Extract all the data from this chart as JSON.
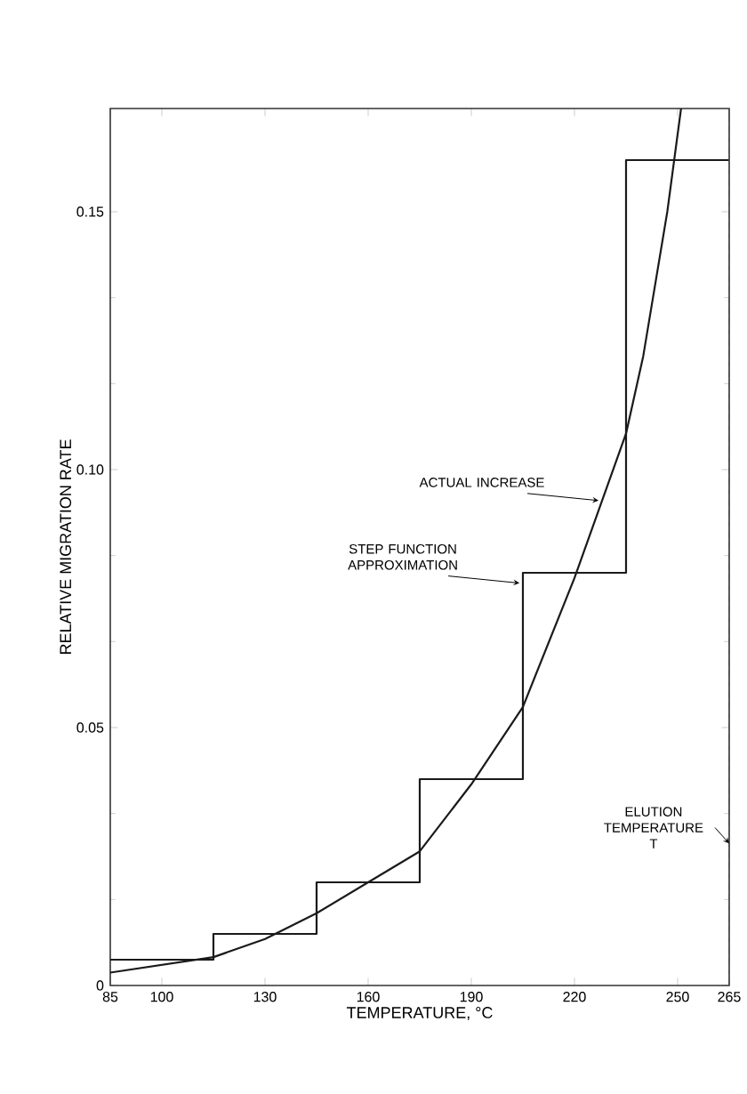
{
  "chart_data": {
    "type": "line",
    "xlabel": "TEMPERATURE,  °C",
    "ylabel": "RELATIVE MIGRATION RATE",
    "xlim": [
      85,
      265
    ],
    "ylim": [
      0,
      0.17
    ],
    "xticks": [
      85,
      100,
      130,
      160,
      190,
      220,
      250,
      265
    ],
    "yticks": [
      0,
      0.05,
      {
        "value": 0.1,
        "label": "0.10"
      },
      0.15
    ],
    "series": [
      {
        "type": "step",
        "color": "#1a1a1a",
        "x": [
          85,
          115,
          145,
          175,
          205,
          235,
          265
        ],
        "values": [
          0.005,
          0.01,
          0.02,
          0.04,
          0.08,
          0.16,
          0.16
        ]
      },
      {
        "color": "#1a1a1a",
        "x": [
          85,
          100,
          115,
          130,
          145,
          160,
          175,
          190,
          205,
          220,
          235,
          240,
          247,
          251
        ],
        "values": [
          0.0025,
          0.004,
          0.0055,
          0.009,
          0.014,
          0.02,
          0.026,
          0.039,
          0.054,
          0.079,
          0.107,
          0.122,
          0.15,
          0.17
        ]
      }
    ],
    "annotations": [
      {
        "text": "ACTUAL INCREASE",
        "x": 227,
        "y": 0.094
      },
      {
        "text": "STEP FUNCTION APPROXIMATION",
        "x": 204,
        "y": 0.078
      }
    ],
    "ref_lines": [
      {
        "axis": "x",
        "value": 265,
        "label": "ELUTION TEMPERATURE T",
        "line_style": "dashed"
      }
    ]
  }
}
